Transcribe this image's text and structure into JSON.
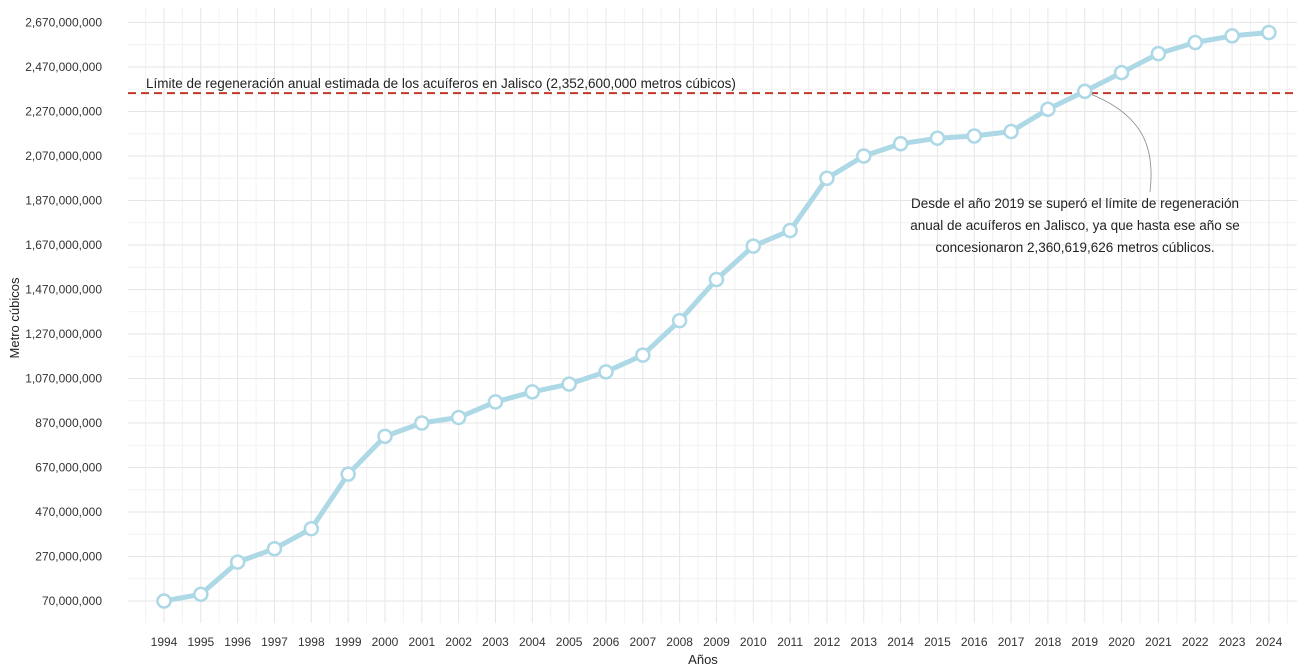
{
  "chart_data": {
    "type": "line",
    "title": "",
    "xlabel": "Años",
    "ylabel": "Metro cúbicos",
    "ylim": [
      0,
      2720000000
    ],
    "yticks": [
      70000000,
      270000000,
      470000000,
      670000000,
      870000000,
      1070000000,
      1270000000,
      1470000000,
      1670000000,
      1870000000,
      2070000000,
      2270000000,
      2470000000,
      2670000000
    ],
    "ytick_labels": [
      "70,000,000",
      "270,000,000",
      "470,000,000",
      "670,000,000",
      "870,000,000",
      "1,070,000,000",
      "1,270,000,000",
      "1,470,000,000",
      "1,670,000,000",
      "1,870,000,000",
      "2,070,000,000",
      "2,270,000,000",
      "2,470,000,000",
      "2,670,000,000"
    ],
    "categories": [
      "1994",
      "1995",
      "1996",
      "1997",
      "1998",
      "1999",
      "2000",
      "2001",
      "2002",
      "2003",
      "2004",
      "2005",
      "2006",
      "2007",
      "2008",
      "2009",
      "2010",
      "2011",
      "2012",
      "2013",
      "2014",
      "2015",
      "2016",
      "2017",
      "2018",
      "2019",
      "2020",
      "2021",
      "2022",
      "2023",
      "2024"
    ],
    "series": [
      {
        "values": [
          70000000,
          100000000,
          245000000,
          305000000,
          395000000,
          640000000,
          810000000,
          870000000,
          895000000,
          965000000,
          1010000000,
          1045000000,
          1100000000,
          1175000000,
          1330000000,
          1515000000,
          1665000000,
          1735000000,
          1970000000,
          2070000000,
          2125000000,
          2150000000,
          2160000000,
          2180000000,
          2280000000,
          2360619626,
          2445000000,
          2530000000,
          2580000000,
          2610000000,
          2625000000
        ],
        "color": "#add8e6"
      }
    ],
    "reference_line": {
      "value": 2352600000,
      "label": "Límite de regeneración anual estimada de los acuíferos en Jalisco (2,352,600,000 metros cúbicos)",
      "color": "#c0392b",
      "style": "dashed"
    },
    "annotation": {
      "lines": [
        "Desde el año 2019 se superó el límite de regeneración",
        "anual de acuíferos en Jalisco, ya que hasta ese año se",
        "concesionaron 2,360,619,626 metros cúblicos."
      ],
      "target_category": "2019"
    },
    "grid": true,
    "legend": "none"
  }
}
